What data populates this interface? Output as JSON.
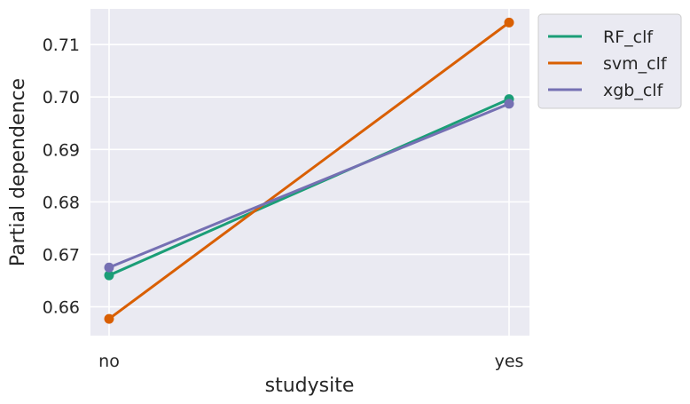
{
  "chart_data": {
    "type": "line",
    "title": "",
    "xlabel": "studysite",
    "ylabel": "Partial dependence",
    "categories": [
      "no",
      "yes"
    ],
    "ylim": [
      0.6545,
      0.7168
    ],
    "yticks": [
      0.66,
      0.67,
      0.68,
      0.69,
      0.7,
      0.71
    ],
    "ytick_labels": [
      "0.66",
      "0.67",
      "0.68",
      "0.69",
      "0.70",
      "0.71"
    ],
    "grid": true,
    "legend_position": "outside-top-right",
    "series": [
      {
        "name": "RF_clf",
        "color": "#1b9e77",
        "values": [
          0.666,
          0.6996
        ]
      },
      {
        "name": "svm_clf",
        "color": "#d95f02",
        "values": [
          0.6577,
          0.7142
        ]
      },
      {
        "name": "xgb_clf",
        "color": "#7570b3",
        "values": [
          0.6675,
          0.6987
        ]
      }
    ]
  }
}
